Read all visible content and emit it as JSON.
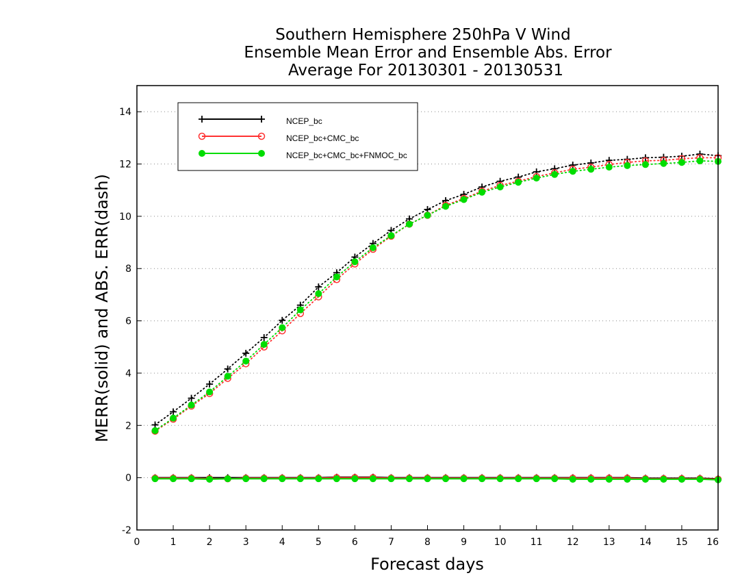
{
  "chart_data": {
    "type": "line",
    "title": [
      "Southern Hemisphere 250hPa V Wind",
      "Ensemble Mean Error and Ensemble Abs. Error",
      "Average For 20130301 - 20130531"
    ],
    "xlabel": "Forecast days",
    "ylabel": "MERR(solid) and ABS. ERR(dash)",
    "xlim": [
      0,
      16
    ],
    "ylim": [
      -2,
      15
    ],
    "xticks": [
      0,
      1,
      2,
      3,
      4,
      5,
      6,
      7,
      8,
      9,
      10,
      11,
      12,
      13,
      14,
      15,
      16
    ],
    "xtick_labels": [
      "0",
      "1",
      "2",
      "3",
      "4",
      "5",
      "6",
      "7",
      "8",
      "9",
      "10",
      "11",
      "12",
      "13",
      "14",
      "15",
      "16"
    ],
    "yticks": [
      -2,
      0,
      2,
      4,
      6,
      8,
      10,
      12,
      14
    ],
    "ytick_labels": [
      "-2",
      "0",
      "2",
      "4",
      "6",
      "8",
      "10",
      "12",
      "14"
    ],
    "grid": "horizontal dotted",
    "legend_position": "top-left",
    "x": [
      0.5,
      1,
      1.5,
      2,
      2.5,
      3,
      3.5,
      4,
      4.5,
      5,
      5.5,
      6,
      6.5,
      7,
      7.5,
      8,
      8.5,
      9,
      9.5,
      10,
      10.5,
      11,
      11.5,
      12,
      12.5,
      13,
      13.5,
      14,
      14.5,
      15,
      15.5,
      16
    ],
    "series": [
      {
        "name": "NCEP_bc",
        "color": "#000000",
        "marker": "plus",
        "merr": [
          0.0,
          0.0,
          0.0,
          0.0,
          0.0,
          0.0,
          0.0,
          0.0,
          0.0,
          0.0,
          0.02,
          0.02,
          0.02,
          0.0,
          0.0,
          0.0,
          0.0,
          0.0,
          0.0,
          0.0,
          0.0,
          0.0,
          0.0,
          0.0,
          0.0,
          0.0,
          0.0,
          -0.02,
          -0.02,
          -0.02,
          -0.02,
          -0.04
        ],
        "abs_err": [
          2.02,
          2.52,
          3.04,
          3.58,
          4.16,
          4.76,
          5.36,
          6.02,
          6.6,
          7.3,
          7.84,
          8.44,
          8.96,
          9.46,
          9.9,
          10.26,
          10.6,
          10.84,
          11.12,
          11.34,
          11.5,
          11.7,
          11.82,
          11.96,
          12.04,
          12.14,
          12.18,
          12.24,
          12.26,
          12.3,
          12.38,
          12.32
        ]
      },
      {
        "name": "NCEP_bc+CMC_bc",
        "color": "#ff3030",
        "marker": "open-circle",
        "merr": [
          -0.02,
          -0.02,
          -0.02,
          -0.04,
          -0.04,
          -0.02,
          -0.02,
          -0.02,
          -0.02,
          -0.02,
          0.0,
          0.0,
          0.0,
          -0.02,
          -0.02,
          -0.02,
          -0.02,
          -0.02,
          -0.02,
          -0.02,
          -0.02,
          -0.02,
          -0.02,
          -0.02,
          -0.02,
          -0.02,
          -0.02,
          -0.04,
          -0.04,
          -0.04,
          -0.04,
          -0.06
        ],
        "abs_err": [
          1.78,
          2.24,
          2.74,
          3.22,
          3.8,
          4.36,
          5.0,
          5.62,
          6.28,
          6.92,
          7.58,
          8.18,
          8.74,
          9.24,
          9.7,
          10.04,
          10.42,
          10.68,
          10.96,
          11.18,
          11.34,
          11.52,
          11.66,
          11.8,
          11.88,
          11.98,
          12.06,
          12.12,
          12.14,
          12.2,
          12.24,
          12.24
        ]
      },
      {
        "name": "NCEP_bc+CMC_bc+FNMOC_bc",
        "color": "#00dd00",
        "marker": "filled-circle",
        "merr": [
          -0.04,
          -0.04,
          -0.04,
          -0.06,
          -0.04,
          -0.04,
          -0.04,
          -0.04,
          -0.04,
          -0.04,
          -0.04,
          -0.04,
          -0.04,
          -0.04,
          -0.04,
          -0.04,
          -0.04,
          -0.04,
          -0.04,
          -0.04,
          -0.04,
          -0.04,
          -0.04,
          -0.06,
          -0.06,
          -0.06,
          -0.06,
          -0.06,
          -0.06,
          -0.06,
          -0.06,
          -0.08
        ],
        "abs_err": [
          1.8,
          2.28,
          2.78,
          3.28,
          3.88,
          4.46,
          5.1,
          5.74,
          6.42,
          7.04,
          7.68,
          8.26,
          8.8,
          9.26,
          9.7,
          10.04,
          10.38,
          10.64,
          10.92,
          11.12,
          11.3,
          11.46,
          11.6,
          11.72,
          11.8,
          11.88,
          11.94,
          11.98,
          12.02,
          12.06,
          12.12,
          12.1
        ]
      }
    ]
  }
}
